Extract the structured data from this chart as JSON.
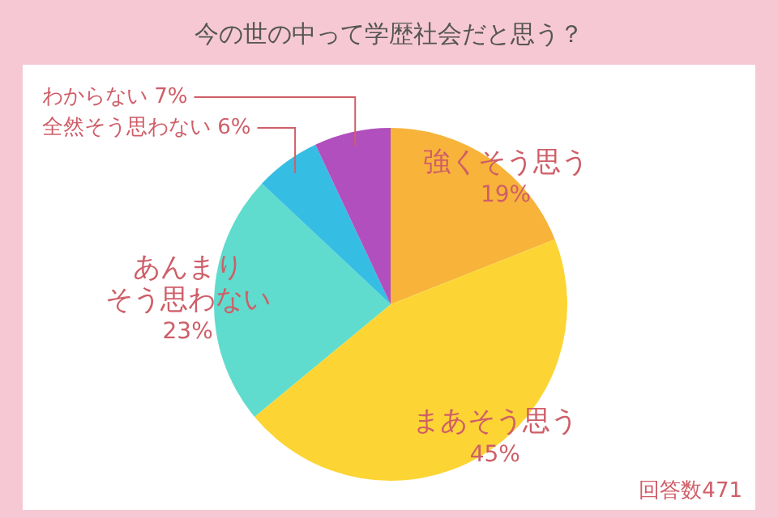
{
  "chart_data": {
    "type": "pie",
    "title": "今の世の中って学歴社会だと思う？",
    "categories": [
      "強くそう思う",
      "まあそう思う",
      "あんまりそう思わない",
      "全然そう思わない",
      "わからない"
    ],
    "values": [
      19,
      45,
      23,
      6,
      7
    ],
    "value_labels": [
      "19%",
      "45%",
      "23%",
      "6%",
      "7%"
    ],
    "colors": [
      "#f7b33a",
      "#fcd535",
      "#5fdccd",
      "#36bde3",
      "#b04fbd"
    ],
    "annotations": [
      "回答数471"
    ]
  }
}
